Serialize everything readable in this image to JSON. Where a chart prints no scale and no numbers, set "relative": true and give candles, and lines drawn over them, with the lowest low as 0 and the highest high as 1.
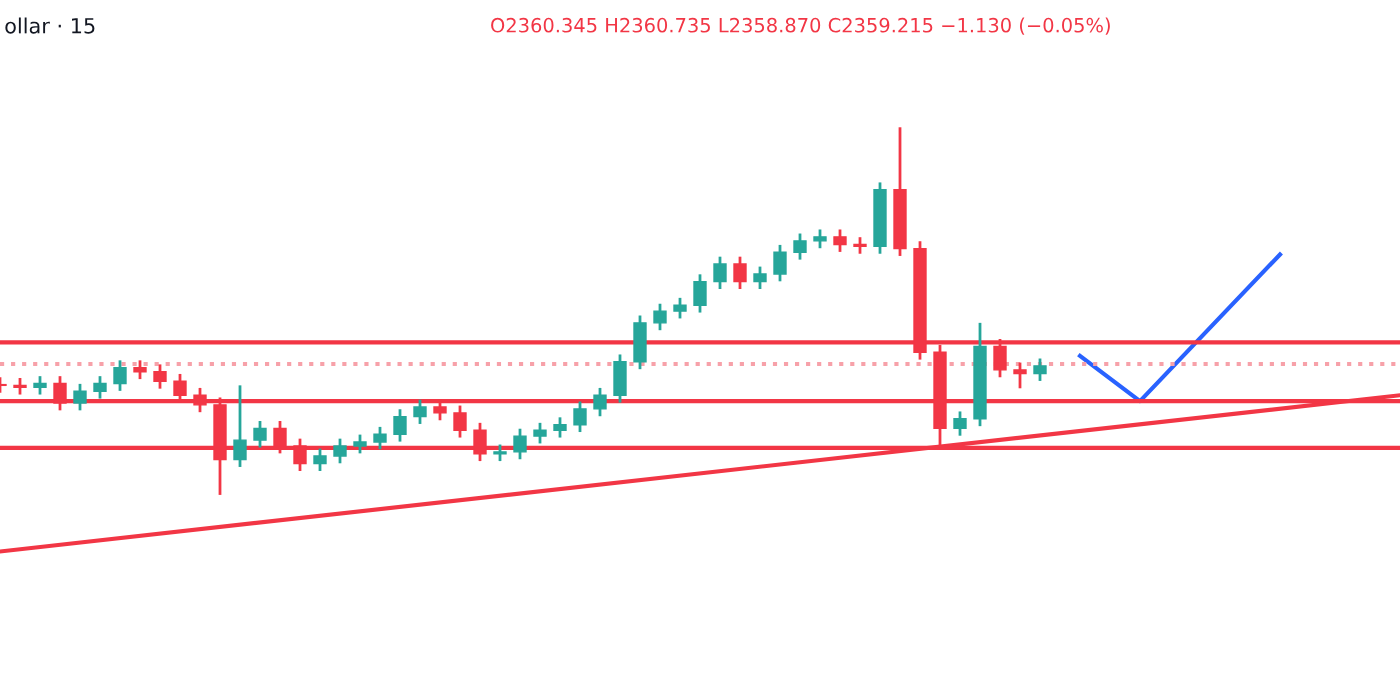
{
  "chart_data": {
    "type": "candlestick",
    "relative": true,
    "title": "ollar · 15",
    "annotations": [
      "O2360.345 H2360.735 L2358.870 C2359.215 −1.130 (−0.05%)"
    ],
    "categories": [
      null,
      null,
      null,
      null,
      null,
      null,
      null,
      null,
      null,
      null,
      null,
      null,
      null,
      null,
      null,
      null,
      null,
      null,
      null,
      null,
      null,
      null,
      null,
      null,
      null,
      null,
      null,
      null,
      null,
      null,
      null,
      null,
      null,
      null,
      null,
      null,
      null,
      null,
      null,
      null,
      null,
      null,
      null,
      null,
      null,
      null,
      null,
      null,
      null,
      null,
      null,
      null,
      null,
      null,
      null,
      null,
      null,
      null,
      null,
      null,
      null,
      null,
      null,
      null,
      null,
      null,
      null,
      null,
      null,
      null,
      null
    ],
    "ref_lines": [
      {
        "axis": "y",
        "value": 0.415,
        "color": "#f23645"
      },
      {
        "axis": "y",
        "value": 0.255,
        "color": "#f23645"
      },
      {
        "axis": "y",
        "value": 0.128,
        "color": "#f23645"
      },
      {
        "axis": "y",
        "value": 0.356,
        "color": "#f7a1a9",
        "line_style": "dotted"
      }
    ],
    "ohlc": [
      [
        0.3,
        0.32,
        0.278,
        0.298
      ],
      [
        0.298,
        0.318,
        0.273,
        0.293
      ],
      [
        0.293,
        0.323,
        0.273,
        0.303
      ],
      [
        0.303,
        0.323,
        0.23,
        0.25
      ],
      [
        0.25,
        0.302,
        0.23,
        0.282
      ],
      [
        0.282,
        0.323,
        0.262,
        0.303
      ],
      [
        0.303,
        0.366,
        0.283,
        0.346
      ],
      [
        0.346,
        0.366,
        0.315,
        0.335
      ],
      [
        0.335,
        0.355,
        0.289,
        0.309
      ],
      [
        0.309,
        0.329,
        0.251,
        0.271
      ],
      [
        0.271,
        0.291,
        0.225,
        0.245
      ],
      [
        0.245,
        0.265,
        0.0,
        0.096
      ],
      [
        0.096,
        0.298,
        0.076,
        0.149
      ],
      [
        0.149,
        0.201,
        0.129,
        0.181
      ],
      [
        0.181,
        0.201,
        0.113,
        0.133
      ],
      [
        0.133,
        0.153,
        0.065,
        0.085
      ],
      [
        0.085,
        0.126,
        0.065,
        0.106
      ],
      [
        0.106,
        0.153,
        0.086,
        0.133
      ],
      [
        0.133,
        0.164,
        0.113,
        0.144
      ],
      [
        0.144,
        0.185,
        0.124,
        0.165
      ],
      [
        0.165,
        0.233,
        0.145,
        0.213
      ],
      [
        0.213,
        0.259,
        0.193,
        0.239
      ],
      [
        0.239,
        0.259,
        0.203,
        0.223
      ],
      [
        0.223,
        0.243,
        0.156,
        0.176
      ],
      [
        0.176,
        0.196,
        0.092,
        0.112
      ],
      [
        0.112,
        0.137,
        0.092,
        0.117
      ],
      [
        0.117,
        0.18,
        0.097,
        0.16
      ],
      [
        0.16,
        0.196,
        0.14,
        0.176
      ],
      [
        0.176,
        0.211,
        0.156,
        0.191
      ],
      [
        0.191,
        0.254,
        0.171,
        0.234
      ],
      [
        0.234,
        0.291,
        0.214,
        0.271
      ],
      [
        0.271,
        0.382,
        0.251,
        0.362
      ],
      [
        0.362,
        0.488,
        0.342,
        0.468
      ],
      [
        0.468,
        0.52,
        0.448,
        0.5
      ],
      [
        0.5,
        0.536,
        0.48,
        0.516
      ],
      [
        0.516,
        0.6,
        0.496,
        0.58
      ],
      [
        0.58,
        0.648,
        0.56,
        0.628
      ],
      [
        0.628,
        0.648,
        0.56,
        0.58
      ],
      [
        0.58,
        0.621,
        0.56,
        0.601
      ],
      [
        0.601,
        0.68,
        0.581,
        0.66
      ],
      [
        0.66,
        0.711,
        0.64,
        0.691
      ],
      [
        0.691,
        0.722,
        0.671,
        0.702
      ],
      [
        0.702,
        0.722,
        0.661,
        0.681
      ],
      [
        0.681,
        0.701,
        0.656,
        0.676
      ],
      [
        0.676,
        0.85,
        0.656,
        0.83
      ],
      [
        0.83,
        1.0,
        0.65,
        0.67
      ],
      [
        0.67,
        0.69,
        0.368,
        0.388
      ],
      [
        0.388,
        0.408,
        0.13,
        0.181
      ],
      [
        0.181,
        0.227,
        0.161,
        0.207
      ],
      [
        0.207,
        0.468,
        0.187,
        0.404
      ],
      [
        0.404,
        0.424,
        0.32,
        0.34
      ],
      [
        0.34,
        0.36,
        0.29,
        0.33
      ],
      [
        0.33,
        0.371,
        0.31,
        0.351
      ],
      null,
      null,
      null,
      null,
      null,
      null,
      null,
      null,
      null,
      null,
      null,
      null,
      null,
      null,
      null,
      null,
      null,
      null
    ],
    "series": [
      {
        "type": "line",
        "color": "#f23645",
        "values": [
          -0.154,
          null,
          null,
          null,
          null,
          null,
          null,
          null,
          null,
          null,
          null,
          null,
          null,
          null,
          null,
          null,
          null,
          null,
          null,
          null,
          null,
          null,
          null,
          null,
          null,
          null,
          null,
          null,
          null,
          null,
          null,
          null,
          null,
          null,
          null,
          null,
          null,
          null,
          null,
          null,
          null,
          null,
          null,
          null,
          null,
          null,
          null,
          null,
          null,
          null,
          null,
          null,
          null,
          null,
          null,
          null,
          null,
          null,
          null,
          null,
          null,
          null,
          null,
          null,
          null,
          null,
          null,
          null,
          null,
          null,
          0.271
        ]
      },
      {
        "type": "line",
        "color": "#2962ff",
        "values": [
          null,
          null,
          null,
          null,
          null,
          null,
          null,
          null,
          null,
          null,
          null,
          null,
          null,
          null,
          null,
          null,
          null,
          null,
          null,
          null,
          null,
          null,
          null,
          null,
          null,
          null,
          null,
          null,
          null,
          null,
          null,
          null,
          null,
          null,
          null,
          null,
          null,
          null,
          null,
          null,
          null,
          null,
          null,
          null,
          null,
          null,
          null,
          null,
          null,
          null,
          null,
          null,
          null,
          null,
          0.378,
          null,
          null,
          0.255,
          null,
          null,
          null,
          null,
          null,
          null,
          0.654,
          null,
          null,
          null,
          null,
          null,
          null
        ]
      }
    ]
  }
}
